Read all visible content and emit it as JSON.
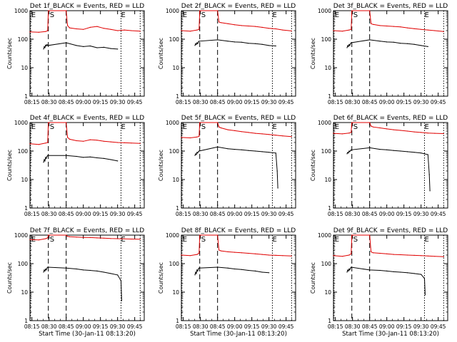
{
  "colors": {
    "events": "#000000",
    "lld": "#e00000",
    "axes": "#000000"
  },
  "x_tick_labels": [
    "08:15",
    "08:30",
    "08:45",
    "09:00",
    "09:15",
    "09:30",
    "09:45"
  ],
  "x_ticks_hours": [
    8.25,
    8.5,
    8.75,
    9.0,
    9.25,
    9.5,
    9.75
  ],
  "y_tick_labels": [
    "1",
    "10",
    "100",
    "1000"
  ],
  "y_ticks_values": [
    1,
    10,
    100,
    1000
  ],
  "xlabel_bottom_row": "Start Time (30-Jan-11 08:13:20)",
  "ylabel": "Counts/sec",
  "marker_labels": {
    "eclipse": "E",
    "saa": "S"
  },
  "chart_data": [
    {
      "type": "line",
      "title": "Det 1f_BLACK = Events, RED = LLD",
      "ylabel": "Counts/sec",
      "xlabel": "",
      "xlim": [
        8.222,
        9.889
      ],
      "ylim": [
        1,
        1000
      ],
      "yscale": "log",
      "markers": [
        {
          "x": 8.22,
          "label": "E"
        },
        {
          "x": 8.49,
          "label": "S"
        },
        {
          "x": 9.53,
          "label": "E"
        }
      ],
      "dashed_lines": [
        8.49,
        8.75
      ],
      "dotted_lines": [
        8.23,
        9.55,
        9.83
      ],
      "series": [
        {
          "name": "Events",
          "color": "#000000",
          "x": [
            8.42,
            8.43,
            8.44,
            8.45,
            8.46,
            8.47,
            8.48,
            8.75,
            8.9,
            9.0,
            9.1,
            9.2,
            9.3,
            9.4,
            9.5
          ],
          "y": [
            45,
            55,
            50,
            62,
            58,
            65,
            60,
            75,
            60,
            55,
            58,
            50,
            52,
            47,
            45
          ]
        },
        {
          "name": "LLD",
          "color": "#e00000",
          "x": [
            8.22,
            8.35,
            8.45,
            8.48,
            8.49,
            8.75,
            8.77,
            8.8,
            8.9,
            9.0,
            9.1,
            9.2,
            9.3,
            9.4,
            9.5,
            9.6,
            9.7,
            9.83
          ],
          "y": [
            180,
            175,
            185,
            200,
            1000,
            1000,
            300,
            250,
            230,
            220,
            260,
            280,
            240,
            220,
            200,
            210,
            200,
            190
          ]
        }
      ]
    },
    {
      "type": "line",
      "title": "Det 2f_BLACK = Events, RED = LLD",
      "ylabel": "Counts/sec",
      "xlabel": "",
      "xlim": [
        8.222,
        9.889
      ],
      "ylim": [
        1,
        1000
      ],
      "yscale": "log",
      "markers": [
        {
          "x": 8.22,
          "label": "E"
        },
        {
          "x": 8.49,
          "label": "S"
        },
        {
          "x": 9.53,
          "label": "E"
        }
      ],
      "dashed_lines": [
        8.49,
        8.75
      ],
      "dotted_lines": [
        8.23,
        9.55,
        9.83
      ],
      "series": [
        {
          "name": "Events",
          "color": "#000000",
          "x": [
            8.42,
            8.43,
            8.44,
            8.45,
            8.46,
            8.47,
            8.48,
            8.75,
            8.9,
            9.0,
            9.1,
            9.2,
            9.3,
            9.4,
            9.5,
            9.6
          ],
          "y": [
            60,
            70,
            65,
            75,
            70,
            80,
            85,
            95,
            85,
            80,
            78,
            72,
            70,
            66,
            60,
            58
          ]
        },
        {
          "name": "LLD",
          "color": "#e00000",
          "x": [
            8.22,
            8.35,
            8.45,
            8.48,
            8.49,
            8.75,
            8.77,
            8.8,
            8.9,
            9.0,
            9.1,
            9.2,
            9.3,
            9.4,
            9.5,
            9.6,
            9.7,
            9.83
          ],
          "y": [
            200,
            190,
            210,
            220,
            1000,
            1000,
            400,
            380,
            350,
            320,
            300,
            290,
            280,
            260,
            240,
            230,
            210,
            195
          ]
        }
      ]
    },
    {
      "type": "line",
      "title": "Det 3f_BLACK = Events, RED = LLD",
      "ylabel": "Counts/sec",
      "xlabel": "",
      "xlim": [
        8.222,
        9.889
      ],
      "ylim": [
        1,
        1000
      ],
      "yscale": "log",
      "markers": [
        {
          "x": 8.22,
          "label": "E"
        },
        {
          "x": 8.49,
          "label": "S"
        },
        {
          "x": 9.53,
          "label": "E"
        }
      ],
      "dashed_lines": [
        8.49,
        8.75
      ],
      "dotted_lines": [
        8.23,
        9.55,
        9.83
      ],
      "series": [
        {
          "name": "Events",
          "color": "#000000",
          "x": [
            8.42,
            8.43,
            8.44,
            8.45,
            8.46,
            8.47,
            8.48,
            8.75,
            8.9,
            9.0,
            9.1,
            9.2,
            9.3,
            9.4,
            9.5,
            9.6
          ],
          "y": [
            50,
            60,
            55,
            65,
            60,
            70,
            75,
            95,
            85,
            80,
            78,
            72,
            70,
            66,
            60,
            55
          ]
        },
        {
          "name": "LLD",
          "color": "#e00000",
          "x": [
            8.22,
            8.35,
            8.45,
            8.48,
            8.49,
            8.75,
            8.77,
            8.8,
            8.9,
            9.0,
            9.1,
            9.2,
            9.3,
            9.4,
            9.5,
            9.6,
            9.7,
            9.83
          ],
          "y": [
            200,
            190,
            210,
            220,
            1000,
            1000,
            350,
            330,
            300,
            290,
            280,
            270,
            250,
            235,
            220,
            210,
            200,
            185
          ]
        }
      ]
    },
    {
      "type": "line",
      "title": "Det 4f_BLACK = Events, RED = LLD",
      "ylabel": "Counts/sec",
      "xlabel": "",
      "xlim": [
        8.222,
        9.889
      ],
      "ylim": [
        1,
        1000
      ],
      "yscale": "log",
      "markers": [
        {
          "x": 8.22,
          "label": "E"
        },
        {
          "x": 8.49,
          "label": "S"
        },
        {
          "x": 9.53,
          "label": "E"
        }
      ],
      "dashed_lines": [
        8.49,
        8.75
      ],
      "dotted_lines": [
        8.23,
        9.55,
        9.83
      ],
      "series": [
        {
          "name": "Events",
          "color": "#000000",
          "x": [
            8.42,
            8.43,
            8.44,
            8.45,
            8.46,
            8.47,
            8.48,
            8.75,
            8.9,
            9.0,
            9.1,
            9.2,
            9.3,
            9.4,
            9.5
          ],
          "y": [
            40,
            50,
            45,
            60,
            55,
            65,
            70,
            70,
            65,
            60,
            62,
            58,
            55,
            50,
            45
          ]
        },
        {
          "name": "LLD",
          "color": "#e00000",
          "x": [
            8.22,
            8.35,
            8.45,
            8.48,
            8.49,
            8.75,
            8.77,
            8.8,
            8.9,
            9.0,
            9.1,
            9.2,
            9.3,
            9.4,
            9.5,
            9.6,
            9.7,
            9.83
          ],
          "y": [
            180,
            170,
            190,
            200,
            1000,
            1000,
            300,
            260,
            230,
            220,
            250,
            240,
            220,
            210,
            200,
            195,
            190,
            185
          ]
        }
      ]
    },
    {
      "type": "line",
      "title": "Det 5f_BLACK = Events, RED = LLD",
      "ylabel": "Counts/sec",
      "xlabel": "",
      "xlim": [
        8.222,
        9.889
      ],
      "ylim": [
        1,
        1000
      ],
      "yscale": "log",
      "markers": [
        {
          "x": 8.22,
          "label": "E"
        },
        {
          "x": 8.49,
          "label": "S"
        },
        {
          "x": 9.53,
          "label": "E"
        }
      ],
      "dashed_lines": [
        8.49,
        8.75
      ],
      "dotted_lines": [
        8.23,
        9.55,
        9.83
      ],
      "series": [
        {
          "name": "Events",
          "color": "#000000",
          "x": [
            8.42,
            8.43,
            8.44,
            8.45,
            8.46,
            8.47,
            8.48,
            8.75,
            8.9,
            9.0,
            9.1,
            9.2,
            9.3,
            9.4,
            9.5,
            9.6,
            9.62,
            9.63
          ],
          "y": [
            70,
            80,
            75,
            90,
            85,
            95,
            100,
            140,
            120,
            115,
            110,
            105,
            100,
            95,
            90,
            85,
            20,
            5
          ]
        },
        {
          "name": "LLD",
          "color": "#e00000",
          "x": [
            8.22,
            8.35,
            8.45,
            8.48,
            8.49,
            8.75,
            8.77,
            8.8,
            8.9,
            9.0,
            9.1,
            9.2,
            9.3,
            9.4,
            9.5,
            9.6,
            9.7,
            9.83
          ],
          "y": [
            300,
            290,
            310,
            330,
            1000,
            1000,
            700,
            650,
            560,
            520,
            480,
            450,
            420,
            400,
            380,
            360,
            340,
            320
          ]
        }
      ]
    },
    {
      "type": "line",
      "title": "Det 6f_BLACK = Events, RED = LLD",
      "ylabel": "Counts/sec",
      "xlabel": "",
      "xlim": [
        8.222,
        9.889
      ],
      "ylim": [
        1,
        1000
      ],
      "yscale": "log",
      "markers": [
        {
          "x": 8.22,
          "label": "E"
        },
        {
          "x": 8.49,
          "label": "S"
        },
        {
          "x": 9.53,
          "label": "E"
        }
      ],
      "dashed_lines": [
        8.49,
        8.75
      ],
      "dotted_lines": [
        8.23,
        9.55,
        9.83
      ],
      "series": [
        {
          "name": "Events",
          "color": "#000000",
          "x": [
            8.42,
            8.43,
            8.44,
            8.45,
            8.46,
            8.47,
            8.48,
            8.75,
            8.9,
            9.0,
            9.1,
            9.2,
            9.3,
            9.4,
            9.5,
            9.6,
            9.62,
            9.63
          ],
          "y": [
            80,
            90,
            85,
            100,
            95,
            105,
            110,
            130,
            115,
            110,
            105,
            100,
            95,
            90,
            85,
            75,
            15,
            4
          ]
        },
        {
          "name": "LLD",
          "color": "#e00000",
          "x": [
            8.22,
            8.35,
            8.45,
            8.48,
            8.49,
            8.75,
            8.77,
            8.8,
            8.9,
            9.0,
            9.1,
            9.2,
            9.3,
            9.4,
            9.5,
            9.6,
            9.7,
            9.83
          ],
          "y": [
            420,
            400,
            430,
            450,
            1000,
            1000,
            750,
            700,
            650,
            600,
            560,
            530,
            500,
            470,
            450,
            430,
            420,
            410
          ]
        }
      ]
    },
    {
      "type": "line",
      "title": "Det 7f_BLACK = Events, RED = LLD",
      "ylabel": "Counts/sec",
      "xlabel": "Start Time (30-Jan-11 08:13:20)",
      "xlim": [
        8.222,
        9.889
      ],
      "ylim": [
        1,
        1000
      ],
      "yscale": "log",
      "markers": [
        {
          "x": 8.22,
          "label": "E"
        },
        {
          "x": 8.49,
          "label": "S"
        },
        {
          "x": 9.53,
          "label": "E"
        }
      ],
      "dashed_lines": [
        8.49,
        8.75
      ],
      "dotted_lines": [
        8.23,
        9.55,
        9.83
      ],
      "series": [
        {
          "name": "Events",
          "color": "#000000",
          "x": [
            8.42,
            8.43,
            8.44,
            8.45,
            8.46,
            8.47,
            8.48,
            8.75,
            8.9,
            9.0,
            9.1,
            9.2,
            9.3,
            9.4,
            9.5,
            9.55,
            9.56
          ],
          "y": [
            50,
            60,
            55,
            65,
            60,
            70,
            75,
            70,
            65,
            60,
            58,
            55,
            50,
            45,
            40,
            25,
            5
          ]
        },
        {
          "name": "LLD",
          "color": "#e00000",
          "x": [
            8.22,
            8.35,
            8.45,
            8.48,
            8.49,
            8.75,
            8.77,
            8.8,
            8.9,
            9.0,
            9.1,
            9.2,
            9.3,
            9.4,
            9.5,
            9.6,
            9.7,
            9.83
          ],
          "y": [
            700,
            680,
            750,
            800,
            1000,
            1000,
            900,
            880,
            850,
            830,
            820,
            800,
            780,
            760,
            750,
            740,
            730,
            720
          ]
        }
      ]
    },
    {
      "type": "line",
      "title": "Det 8f_BLACK = Events, RED = LLD",
      "ylabel": "Counts/sec",
      "xlabel": "Start Time (30-Jan-11 08:13:20)",
      "xlim": [
        8.222,
        9.889
      ],
      "ylim": [
        1,
        1000
      ],
      "yscale": "log",
      "markers": [
        {
          "x": 8.22,
          "label": "E"
        },
        {
          "x": 8.49,
          "label": "S"
        },
        {
          "x": 9.53,
          "label": "E"
        }
      ],
      "dashed_lines": [
        8.49,
        8.75
      ],
      "dotted_lines": [
        8.23,
        9.55,
        9.83
      ],
      "series": [
        {
          "name": "Events",
          "color": "#000000",
          "x": [
            8.42,
            8.43,
            8.44,
            8.45,
            8.46,
            8.47,
            8.48,
            8.75,
            8.9,
            9.0,
            9.1,
            9.2,
            9.3,
            9.4,
            9.5
          ],
          "y": [
            40,
            50,
            45,
            60,
            55,
            65,
            70,
            75,
            70,
            65,
            62,
            58,
            55,
            50,
            48
          ]
        },
        {
          "name": "LLD",
          "color": "#e00000",
          "x": [
            8.22,
            8.35,
            8.45,
            8.48,
            8.49,
            8.75,
            8.77,
            8.8,
            8.9,
            9.0,
            9.1,
            9.2,
            9.3,
            9.4,
            9.5,
            9.6,
            9.7,
            9.83
          ],
          "y": [
            200,
            190,
            210,
            230,
            1000,
            1000,
            300,
            280,
            260,
            250,
            240,
            230,
            220,
            210,
            200,
            195,
            190,
            185
          ]
        }
      ]
    },
    {
      "type": "line",
      "title": "Det 9f_BLACK = Events, RED = LLD",
      "ylabel": "Counts/sec",
      "xlabel": "Start Time (30-Jan-11 08:13:20)",
      "xlim": [
        8.222,
        9.889
      ],
      "ylim": [
        1,
        1000
      ],
      "yscale": "log",
      "markers": [
        {
          "x": 8.22,
          "label": "E"
        },
        {
          "x": 8.49,
          "label": "S"
        },
        {
          "x": 9.53,
          "label": "E"
        }
      ],
      "dashed_lines": [
        8.49,
        8.75
      ],
      "dotted_lines": [
        8.23,
        9.55,
        9.83
      ],
      "series": [
        {
          "name": "Events",
          "color": "#000000",
          "x": [
            8.42,
            8.43,
            8.44,
            8.45,
            8.46,
            8.47,
            8.48,
            8.75,
            8.9,
            9.0,
            9.1,
            9.2,
            9.3,
            9.4,
            9.5,
            9.55,
            9.56
          ],
          "y": [
            50,
            60,
            55,
            65,
            60,
            70,
            75,
            60,
            58,
            55,
            52,
            50,
            48,
            45,
            42,
            30,
            8
          ]
        },
        {
          "name": "LLD",
          "color": "#e00000",
          "x": [
            8.22,
            8.35,
            8.45,
            8.48,
            8.49,
            8.75,
            8.77,
            8.8,
            8.9,
            9.0,
            9.1,
            9.2,
            9.3,
            9.4,
            9.5,
            9.6,
            9.7,
            9.83
          ],
          "y": [
            190,
            180,
            200,
            220,
            1000,
            1000,
            260,
            240,
            230,
            220,
            210,
            205,
            200,
            195,
            190,
            185,
            180,
            175
          ]
        }
      ]
    }
  ]
}
